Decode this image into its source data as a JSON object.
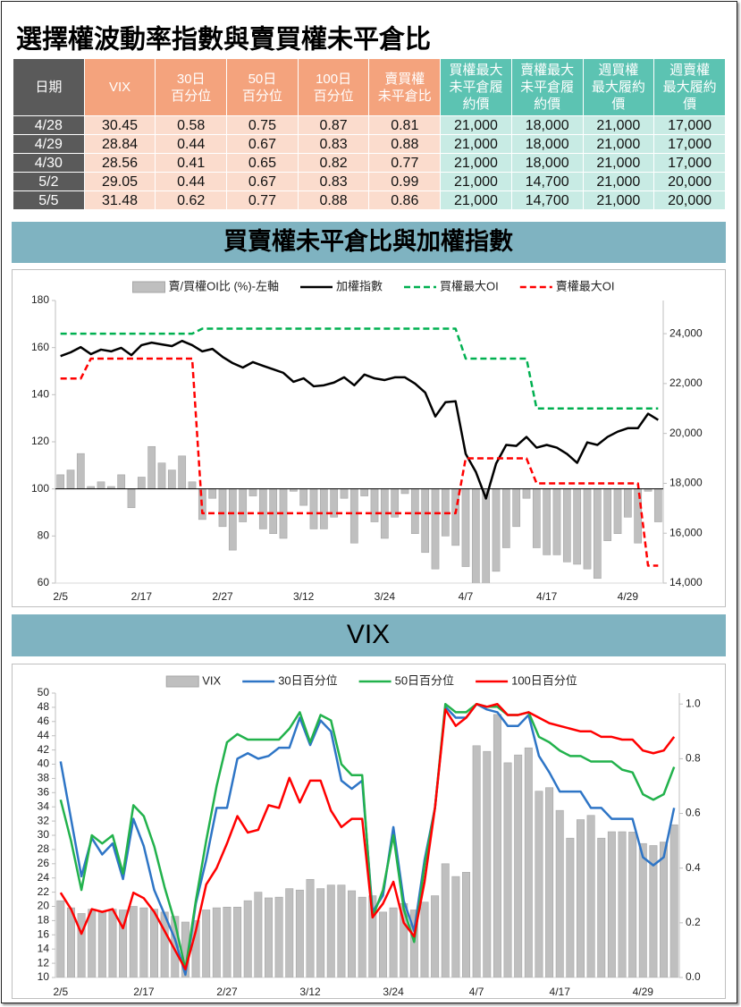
{
  "title": "選擇權波動率指數與賣買權未平倉比",
  "table": {
    "header": [
      [
        "日期"
      ],
      [
        "VIX"
      ],
      [
        "30日",
        "百分位"
      ],
      [
        "50日",
        "百分位"
      ],
      [
        "100日",
        "百分位"
      ],
      [
        "賣買權",
        "未平倉比"
      ],
      [
        "買權最大",
        "未平倉履",
        "約價"
      ],
      [
        "賣權最大",
        "未平倉履",
        "約價"
      ],
      [
        "週買權",
        "最大履約",
        "價"
      ],
      [
        "週賣權",
        "最大履約",
        "價"
      ]
    ],
    "rows": [
      [
        "4/28",
        "30.45",
        "0.58",
        "0.75",
        "0.87",
        "0.81",
        "21,000",
        "18,000",
        "21,000",
        "17,000"
      ],
      [
        "4/29",
        "28.84",
        "0.44",
        "0.67",
        "0.83",
        "0.88",
        "21,000",
        "18,000",
        "21,000",
        "17,000"
      ],
      [
        "4/30",
        "28.56",
        "0.41",
        "0.65",
        "0.82",
        "0.77",
        "21,000",
        "18,000",
        "21,000",
        "17,000"
      ],
      [
        "5/2",
        "29.05",
        "0.44",
        "0.67",
        "0.83",
        "0.99",
        "21,000",
        "14,700",
        "21,000",
        "20,000"
      ],
      [
        "5/5",
        "31.48",
        "0.62",
        "0.77",
        "0.88",
        "0.86",
        "21,000",
        "14,700",
        "21,000",
        "20,000"
      ]
    ]
  },
  "chart_data": [
    {
      "type": "bar_line",
      "title": "買賣權未平倉比與加權指數",
      "categories": [
        "2/5",
        null,
        null,
        null,
        null,
        null,
        null,
        null,
        "2/17",
        null,
        null,
        null,
        null,
        null,
        null,
        null,
        "2/27",
        null,
        null,
        null,
        null,
        null,
        null,
        null,
        "3/12",
        null,
        null,
        null,
        null,
        null,
        null,
        null,
        "3/24",
        null,
        null,
        null,
        null,
        null,
        null,
        null,
        "4/7",
        null,
        null,
        null,
        null,
        null,
        null,
        null,
        "4/17",
        null,
        null,
        null,
        null,
        null,
        null,
        null,
        "4/29",
        null,
        null,
        null
      ],
      "ylim": [
        60,
        180
      ],
      "yticks": [
        60,
        80,
        100,
        120,
        140,
        160,
        180
      ],
      "y2lim": [
        14000,
        25330
      ],
      "y2ticks": [
        {
          "value": 14000,
          "label": "14,000"
        },
        {
          "value": 16000,
          "label": "16,000"
        },
        {
          "value": 18000,
          "label": "18,000"
        },
        {
          "value": 20000,
          "label": "20,000"
        },
        {
          "value": 22000,
          "label": "22,000"
        },
        {
          "value": 24000,
          "label": "24,000"
        }
      ],
      "bar_baseline": 100,
      "grid": false,
      "legend": "top",
      "series": [
        {
          "name": "賣/買權OI比 (%)-左軸",
          "type": "bar",
          "color": "#bfbfbf",
          "values": [
            106,
            108,
            115,
            101,
            103,
            101,
            106,
            92,
            105,
            118,
            111,
            108,
            114,
            103,
            87,
            96,
            84,
            74,
            86,
            97,
            83,
            81,
            79,
            99,
            93,
            83,
            83,
            88,
            96,
            77,
            97,
            86,
            79,
            88,
            98,
            81,
            73,
            66,
            80,
            76,
            67,
            57,
            58,
            65,
            75,
            84,
            96,
            75,
            72,
            72,
            69,
            68,
            66,
            62,
            78,
            81,
            88,
            77,
            99,
            86
          ]
        },
        {
          "name": "加權指數",
          "type": "line",
          "axis": "y2",
          "color": "#000000",
          "values": [
            23100,
            23250,
            23460,
            23180,
            23360,
            23290,
            23430,
            23140,
            23540,
            23640,
            23570,
            23500,
            23710,
            23540,
            23290,
            23390,
            23070,
            22820,
            22640,
            22860,
            22710,
            22570,
            22430,
            22070,
            22210,
            21890,
            21930,
            22040,
            22250,
            21930,
            22360,
            22210,
            22140,
            22250,
            22250,
            22000,
            21640,
            20680,
            21250,
            21290,
            19180,
            18460,
            17390,
            18790,
            19540,
            19500,
            19860,
            19430,
            19540,
            19430,
            19180,
            18820,
            19640,
            19540,
            19860,
            20070,
            20210,
            20210,
            20790,
            20540
          ]
        },
        {
          "name": "買權最大OI",
          "type": "line",
          "axis": "y2",
          "color": "#00b050",
          "dashed": true,
          "values": [
            24000,
            24000,
            24000,
            24000,
            24000,
            24000,
            24000,
            24000,
            24000,
            24000,
            24000,
            24000,
            24000,
            24000,
            24200,
            24200,
            24200,
            24200,
            24200,
            24200,
            24200,
            24200,
            24200,
            24200,
            24200,
            24200,
            24200,
            24200,
            24200,
            24200,
            24200,
            24200,
            24200,
            24200,
            24200,
            24200,
            24200,
            24200,
            24200,
            24200,
            23000,
            23000,
            23000,
            23000,
            23000,
            23000,
            23000,
            21000,
            21000,
            21000,
            21000,
            21000,
            21000,
            21000,
            21000,
            21000,
            21000,
            21000,
            21000,
            21000
          ]
        },
        {
          "name": "賣權最大OI",
          "type": "line",
          "axis": "y2",
          "color": "#ff0000",
          "dashed": true,
          "values": [
            22200,
            22200,
            22200,
            23000,
            23000,
            23000,
            23000,
            23000,
            23000,
            23000,
            23000,
            23000,
            23000,
            23000,
            16800,
            16800,
            16800,
            16800,
            16800,
            16800,
            16800,
            16800,
            16800,
            16800,
            16800,
            16800,
            16800,
            16800,
            16800,
            16800,
            16800,
            16800,
            16800,
            16800,
            16800,
            16800,
            16800,
            16800,
            16800,
            16800,
            19000,
            19000,
            19000,
            19000,
            19000,
            19000,
            19000,
            18000,
            18000,
            18000,
            18000,
            18000,
            18000,
            18000,
            18000,
            18000,
            18000,
            18000,
            14700,
            14700
          ]
        }
      ]
    },
    {
      "type": "bar_line",
      "title": "VIX",
      "categories": [
        "2/5",
        null,
        null,
        null,
        null,
        null,
        null,
        null,
        "2/17",
        null,
        null,
        null,
        null,
        null,
        null,
        null,
        "2/27",
        null,
        null,
        null,
        null,
        null,
        null,
        null,
        "3/12",
        null,
        null,
        null,
        null,
        null,
        null,
        null,
        "3/24",
        null,
        null,
        null,
        null,
        null,
        null,
        null,
        "4/7",
        null,
        null,
        null,
        null,
        null,
        null,
        null,
        "4/17",
        null,
        null,
        null,
        null,
        null,
        null,
        null,
        "4/29",
        null,
        null,
        null
      ],
      "ylim": [
        10,
        50
      ],
      "yticks": [
        10,
        12,
        14,
        16,
        18,
        20,
        22,
        24,
        26,
        28,
        30,
        32,
        34,
        36,
        38,
        40,
        42,
        44,
        46,
        48,
        50
      ],
      "y2lim": [
        0,
        1.04
      ],
      "y2ticks": [
        {
          "value": 0,
          "label": "0.0"
        },
        0.2,
        0.4,
        0.6,
        0.8,
        {
          "value": 1,
          "label": "1.0"
        }
      ],
      "grid": false,
      "legend": "top",
      "series": [
        {
          "name": "VIX",
          "type": "bar",
          "color": "#bfbfbf",
          "values": [
            20.8,
            19.8,
            19,
            19.6,
            19.3,
            19.6,
            19.5,
            20,
            19.8,
            19.6,
            19.2,
            18.6,
            17.8,
            18,
            19.5,
            19.8,
            19.9,
            19.9,
            20.8,
            22,
            21.2,
            21.3,
            22.5,
            22.3,
            23.8,
            22.5,
            23,
            23,
            22.2,
            21.3,
            21.5,
            19.2,
            19.8,
            20.4,
            19.5,
            20.6,
            21.5,
            26,
            24.2,
            24.8,
            42.6,
            41.8,
            47,
            40.2,
            41.3,
            42.3,
            36.2,
            36.7,
            33.5,
            29.6,
            32.2,
            32.8,
            29.6,
            30.5,
            30.5,
            30.45,
            28.84,
            28.56,
            29.05,
            31.48
          ]
        },
        {
          "name": "30日百分位",
          "type": "line",
          "axis": "y2",
          "color": "#2e75c6",
          "values": [
            0.79,
            0.58,
            0.37,
            0.51,
            0.45,
            0.49,
            0.36,
            0.58,
            0.48,
            0.32,
            0.23,
            0.14,
            0.01,
            0.27,
            0.43,
            0.62,
            0.62,
            0.8,
            0.82,
            0.8,
            0.81,
            0.84,
            0.84,
            0.95,
            0.85,
            0.94,
            0.9,
            0.72,
            0.69,
            0.72,
            0.24,
            0.3,
            0.55,
            0.28,
            0.17,
            0.43,
            0.62,
            0.99,
            0.95,
            0.95,
            1.0,
            0.98,
            0.97,
            0.92,
            0.92,
            0.96,
            0.81,
            0.75,
            0.68,
            0.68,
            0.68,
            0.62,
            0.62,
            0.58,
            0.58,
            0.58,
            0.44,
            0.41,
            0.44,
            0.62
          ]
        },
        {
          "name": "50日百分位",
          "type": "line",
          "axis": "y2",
          "color": "#22b24c",
          "values": [
            0.65,
            0.5,
            0.32,
            0.52,
            0.49,
            0.52,
            0.38,
            0.63,
            0.59,
            0.48,
            0.33,
            0.2,
            0.03,
            0.28,
            0.5,
            0.7,
            0.86,
            0.89,
            0.87,
            0.87,
            0.87,
            0.87,
            0.91,
            0.97,
            0.86,
            0.96,
            0.94,
            0.78,
            0.74,
            0.74,
            0.22,
            0.32,
            0.52,
            0.25,
            0.13,
            0.41,
            0.62,
            1.0,
            0.97,
            0.97,
            1.0,
            0.99,
            0.99,
            0.96,
            0.96,
            0.97,
            0.88,
            0.86,
            0.83,
            0.81,
            0.81,
            0.79,
            0.79,
            0.79,
            0.76,
            0.75,
            0.67,
            0.65,
            0.67,
            0.77
          ]
        },
        {
          "name": "100日百分位",
          "type": "line",
          "axis": "y2",
          "color": "#ff0000",
          "values": [
            0.31,
            0.25,
            0.16,
            0.25,
            0.24,
            0.25,
            0.18,
            0.31,
            0.29,
            0.24,
            0.17,
            0.1,
            0.03,
            0.17,
            0.34,
            0.4,
            0.49,
            0.59,
            0.53,
            0.54,
            0.63,
            0.62,
            0.73,
            0.64,
            0.72,
            0.72,
            0.61,
            0.55,
            0.58,
            0.58,
            0.22,
            0.27,
            0.35,
            0.2,
            0.15,
            0.35,
            0.62,
            0.98,
            0.92,
            0.95,
            1.0,
            0.99,
            1.0,
            0.96,
            0.96,
            0.97,
            0.95,
            0.93,
            0.92,
            0.91,
            0.9,
            0.9,
            0.88,
            0.88,
            0.87,
            0.87,
            0.83,
            0.82,
            0.83,
            0.88
          ]
        }
      ]
    }
  ]
}
